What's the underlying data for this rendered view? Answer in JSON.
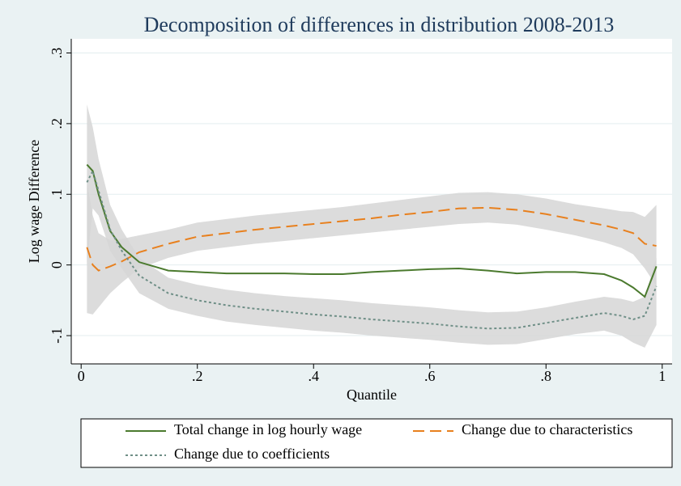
{
  "chart_data": {
    "type": "line",
    "title": "Decomposition of differences in distribution 2008-2013",
    "x_label": "Quantile",
    "y_label": "Log wage Difference",
    "x": [
      0.01,
      0.02,
      0.03,
      0.05,
      0.07,
      0.1,
      0.15,
      0.2,
      0.25,
      0.3,
      0.35,
      0.4,
      0.45,
      0.5,
      0.55,
      0.6,
      0.65,
      0.7,
      0.75,
      0.8,
      0.85,
      0.9,
      0.93,
      0.95,
      0.97,
      0.99
    ],
    "series": [
      {
        "name": "Total change in log hourly wage",
        "color": "#4b7a2e",
        "dash": "solid",
        "values": [
          0.142,
          0.133,
          0.1,
          0.048,
          0.025,
          0.004,
          -0.008,
          -0.01,
          -0.012,
          -0.012,
          -0.012,
          -0.013,
          -0.013,
          -0.01,
          -0.008,
          -0.006,
          -0.005,
          -0.008,
          -0.012,
          -0.01,
          -0.01,
          -0.013,
          -0.022,
          -0.032,
          -0.045,
          -0.002
        ]
      },
      {
        "name": "Change due to characteristics",
        "color": "#e8801e",
        "dash": "dash",
        "values": [
          0.025,
          0.0,
          -0.008,
          -0.002,
          0.005,
          0.018,
          0.03,
          0.04,
          0.045,
          0.05,
          0.054,
          0.058,
          0.062,
          0.066,
          0.071,
          0.075,
          0.08,
          0.081,
          0.078,
          0.072,
          0.064,
          0.056,
          0.05,
          0.045,
          0.03,
          0.027
        ]
      },
      {
        "name": "Change due to coefficients",
        "color": "#6f8f87",
        "dash": "dot",
        "values": [
          0.117,
          0.133,
          0.105,
          0.05,
          0.02,
          -0.015,
          -0.04,
          -0.05,
          -0.057,
          -0.062,
          -0.066,
          -0.07,
          -0.073,
          -0.077,
          -0.08,
          -0.083,
          -0.087,
          -0.09,
          -0.089,
          -0.082,
          -0.075,
          -0.068,
          -0.072,
          -0.077,
          -0.072,
          -0.03
        ]
      }
    ],
    "bands": [
      {
        "color": "#d6d6d6",
        "lower": [
          -0.068,
          -0.07,
          -0.06,
          -0.04,
          -0.025,
          -0.005,
          0.01,
          0.02,
          0.025,
          0.03,
          0.034,
          0.038,
          0.042,
          0.046,
          0.05,
          0.054,
          0.058,
          0.06,
          0.057,
          0.05,
          0.042,
          0.032,
          0.024,
          0.015,
          -0.005,
          -0.03
        ],
        "upper": [
          0.118,
          0.07,
          0.045,
          0.035,
          0.037,
          0.042,
          0.05,
          0.06,
          0.065,
          0.07,
          0.074,
          0.078,
          0.082,
          0.087,
          0.092,
          0.097,
          0.102,
          0.103,
          0.1,
          0.094,
          0.086,
          0.08,
          0.076,
          0.075,
          0.068,
          0.085
        ]
      },
      {
        "color": "#d6d6d6",
        "lower": [
          0.0,
          0.08,
          0.07,
          0.02,
          -0.005,
          -0.04,
          -0.062,
          -0.072,
          -0.08,
          -0.085,
          -0.089,
          -0.093,
          -0.096,
          -0.1,
          -0.103,
          -0.106,
          -0.11,
          -0.113,
          -0.112,
          -0.105,
          -0.098,
          -0.093,
          -0.1,
          -0.11,
          -0.117,
          -0.085
        ],
        "upper": [
          0.227,
          0.195,
          0.15,
          0.085,
          0.05,
          0.01,
          -0.018,
          -0.028,
          -0.035,
          -0.04,
          -0.044,
          -0.047,
          -0.05,
          -0.054,
          -0.057,
          -0.06,
          -0.064,
          -0.067,
          -0.066,
          -0.06,
          -0.052,
          -0.045,
          -0.048,
          -0.052,
          -0.045,
          0.01
        ]
      }
    ],
    "xlim": [
      -0.017,
      1.017
    ],
    "ylim": [
      -0.14,
      0.32
    ],
    "xticks": [
      0,
      {
        "value": 0.2,
        "label": ".2"
      },
      {
        "value": 0.4,
        "label": ".4"
      },
      {
        "value": 0.6,
        "label": ".6"
      },
      {
        "value": 0.8,
        "label": ".8"
      },
      1
    ],
    "yticks": [
      {
        "value": -0.1,
        "label": "-.1"
      },
      0,
      {
        "value": 0.1,
        "label": ".1"
      },
      {
        "value": 0.2,
        "label": ".2"
      },
      {
        "value": 0.3,
        "label": ".3"
      }
    ],
    "grid": true
  }
}
